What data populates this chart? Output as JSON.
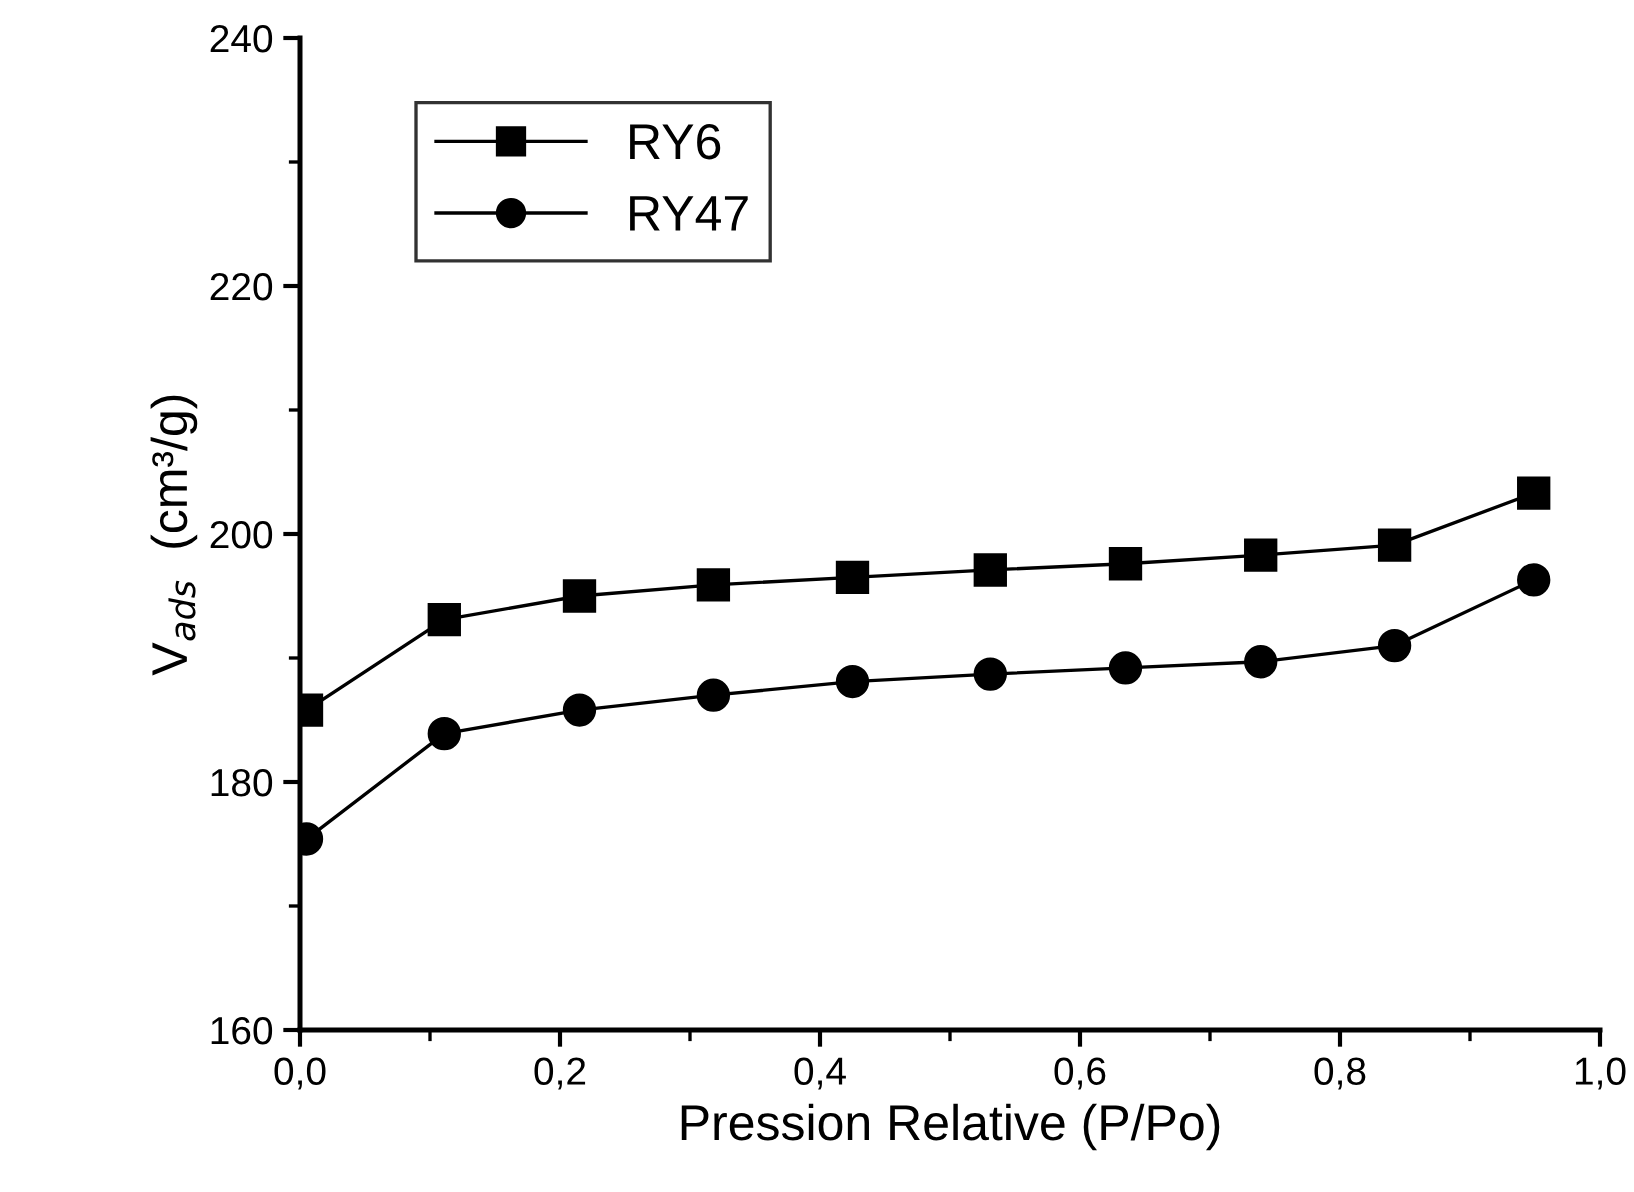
{
  "chart_data": {
    "type": "line",
    "xlabel": "Pression Relative (P/Po)",
    "ylabel": "V$_{ads}$  (cm³/g)",
    "xlim": [
      0,
      1
    ],
    "ylim": [
      160,
      240
    ],
    "xticks": [
      {
        "value": 0,
        "label": "0,0"
      },
      {
        "value": 0.2,
        "label": "0,2"
      },
      {
        "value": 0.4,
        "label": "0,4"
      },
      {
        "value": 0.6,
        "label": "0,6"
      },
      {
        "value": 0.8,
        "label": "0,8"
      },
      {
        "value": 1,
        "label": "1,0"
      }
    ],
    "yticks": [
      160,
      180,
      200,
      220,
      240
    ],
    "x": [
      0.005,
      0.111,
      0.215,
      0.318,
      0.425,
      0.531,
      0.635,
      0.739,
      0.842,
      0.949
    ],
    "series": [
      {
        "name": "RY6",
        "color": "#000000",
        "marker": "square",
        "values": [
          185.8,
          193.1,
          195.0,
          195.9,
          196.5,
          197.1,
          197.6,
          198.3,
          199.1,
          203.3
        ]
      },
      {
        "name": "RY47",
        "color": "#000000",
        "marker": "circle",
        "values": [
          175.4,
          183.9,
          185.8,
          187.0,
          188.1,
          188.7,
          189.2,
          189.7,
          191.0,
          196.3
        ]
      }
    ],
    "legend": "top left",
    "grid": false,
    "line_style": "solid"
  }
}
